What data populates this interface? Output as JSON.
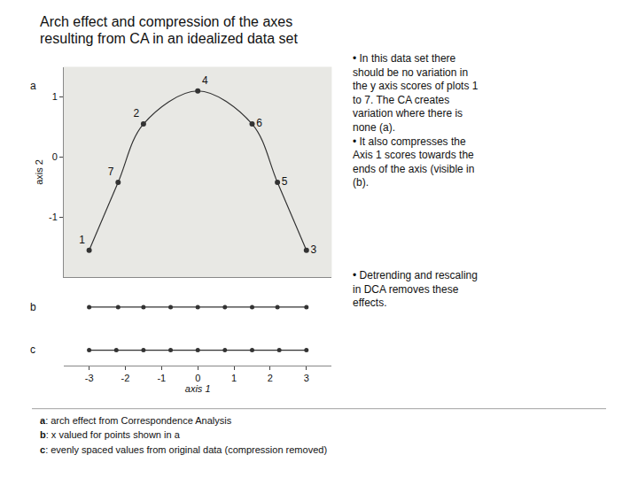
{
  "title": "Arch effect and compression of the axes",
  "subtitle": "resulting from CA in an idealized data set",
  "notes": [
    "• In this data set there\nshould be no variation in\nthe y axis scores of plots 1\nto 7. The CA creates\nvariation where there is\nnone (a).\n• It also compresses the\nAxis 1 scores towards the\nends of the axis (visible in\n(b).",
    "• Detrending and rescaling\nin DCA removes these\neffects."
  ],
  "captions": [
    "a: arch effect from Correspondence Analysis",
    "b: x valued for points shown in a",
    "c: evenly spaced values from original data (compression removed)"
  ],
  "chart_data": [
    {
      "type": "scatter",
      "title": "a",
      "x": [
        -3.0,
        -2.2,
        -1.5,
        0.0,
        1.5,
        2.2,
        3.0
      ],
      "values": [
        -1.55,
        -0.42,
        0.55,
        1.1,
        0.55,
        -0.42,
        -1.55
      ],
      "point_labels": [
        1,
        7,
        2,
        4,
        6,
        5,
        3
      ],
      "color": "#333333",
      "ylabel": "axis 2",
      "xlim": [
        -3.7,
        3.7
      ],
      "ylim": [
        -2.0,
        1.5
      ],
      "xticks": [],
      "yticks": [
        -1,
        0,
        1
      ],
      "tick_labels": "y",
      "grid": false
    },
    {
      "type": "scatter",
      "title": "b",
      "x": [
        -3.0,
        -2.2,
        -1.5,
        -0.75,
        0.0,
        0.75,
        1.5,
        2.2,
        3.0
      ],
      "values": [
        0,
        0,
        0,
        0,
        0,
        0,
        0,
        0,
        0
      ],
      "color": "#333333",
      "xlim": [
        -3.7,
        3.7
      ],
      "ylim": [
        -1,
        1
      ],
      "xticks": [],
      "yticks": [],
      "tick_labels": false,
      "grid": false
    },
    {
      "type": "scatter",
      "title": "c",
      "x": [
        -3.0,
        -2.25,
        -1.5,
        -0.75,
        0.0,
        0.75,
        1.5,
        2.25,
        3.0
      ],
      "values": [
        0,
        0,
        0,
        0,
        0,
        0,
        0,
        0,
        0
      ],
      "color": "#333333",
      "xlabel": "axis 1",
      "xlim": [
        -3.7,
        3.7
      ],
      "ylim": [
        -1,
        1
      ],
      "xticks": [
        -3,
        -2,
        -1,
        0,
        1,
        2,
        3
      ],
      "yticks": [],
      "tick_labels": "x",
      "grid": false
    }
  ]
}
